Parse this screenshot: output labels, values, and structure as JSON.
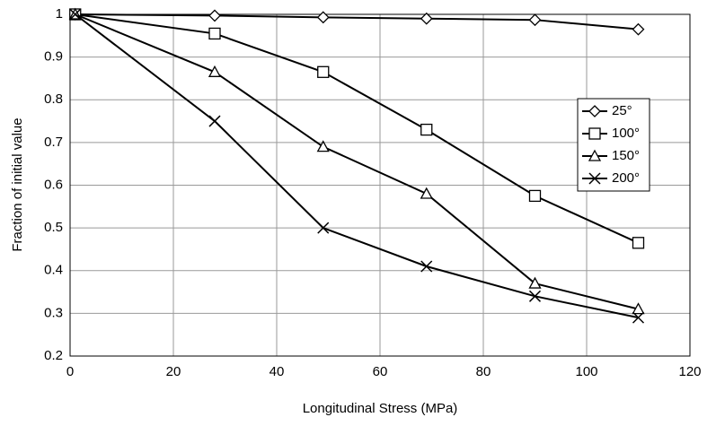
{
  "chart_data": {
    "type": "line",
    "x_label": "Longitudinal Stress (MPa)",
    "y_label": "Fraction of initial value",
    "x": [
      1,
      28,
      49,
      69,
      90,
      110
    ],
    "series": [
      {
        "name": "25°",
        "color": "#000000",
        "marker": "diamond",
        "values": [
          1,
          0.997,
          0.993,
          0.99,
          0.987,
          0.965
        ]
      },
      {
        "name": "100°",
        "color": "#000000",
        "marker": "square",
        "values": [
          1,
          0.955,
          0.865,
          0.73,
          0.575,
          0.465
        ]
      },
      {
        "name": "150°",
        "color": "#000000",
        "marker": "triangle",
        "values": [
          1,
          0.865,
          0.69,
          0.58,
          0.37,
          0.31
        ]
      },
      {
        "name": "200°",
        "color": "#000000",
        "marker": "x",
        "values": [
          1,
          0.75,
          0.5,
          0.41,
          0.34,
          0.29
        ]
      }
    ],
    "xlim": [
      0,
      120
    ],
    "xticks": [
      0,
      20,
      40,
      60,
      80,
      100,
      120
    ],
    "ylim": [
      0.2,
      1
    ],
    "yticks": [
      0.2,
      0.3,
      0.4,
      0.5,
      0.6,
      0.7,
      0.8,
      0.9,
      1
    ],
    "grid": true,
    "legend": "right"
  }
}
